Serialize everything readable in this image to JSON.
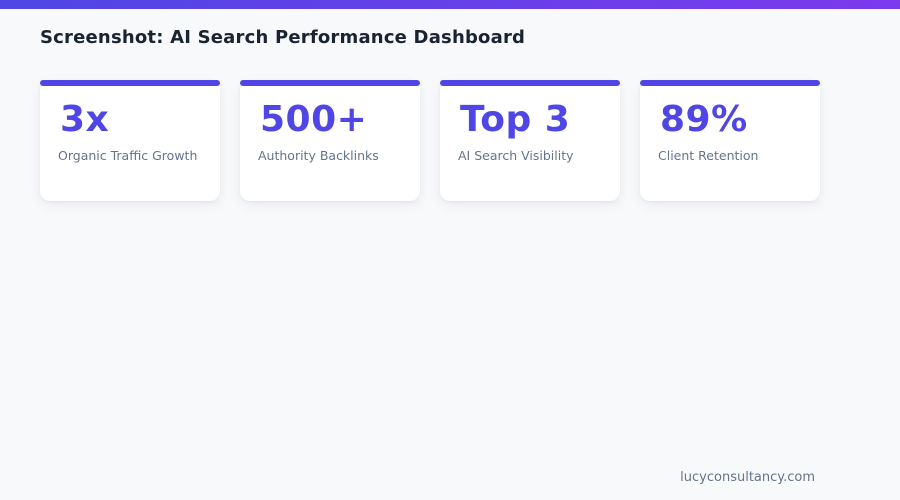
{
  "page": {
    "title": "Screenshot: AI Search Performance Dashboard",
    "footer_domain": "lucyconsultancy.com"
  },
  "colors": {
    "accent_indigo": "#4f46e5",
    "accent_violet": "#7c3aed",
    "page_bg": "#f8f9fb",
    "card_bg": "#ffffff",
    "title_text": "#1a2332",
    "label_text": "#64748b"
  },
  "stats": [
    {
      "value": "3x",
      "label": "Organic Traffic Growth"
    },
    {
      "value": "500+",
      "label": "Authority Backlinks"
    },
    {
      "value": "Top 3",
      "label": "AI Search Visibility"
    },
    {
      "value": "89%",
      "label": "Client Retention"
    }
  ]
}
